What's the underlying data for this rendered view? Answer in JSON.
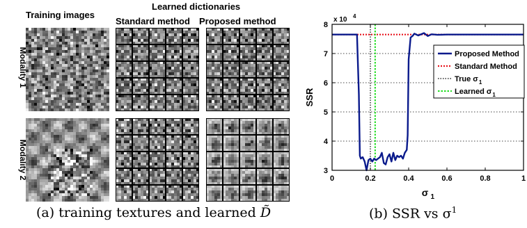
{
  "panel_a": {
    "header_training": "Training images",
    "header_dictionaries": "Learned dictionaries",
    "header_standard": "Standard method",
    "header_proposed": "Proposed method",
    "row_labels": [
      "Modality 1",
      "Modality 2"
    ],
    "caption_prefix": "(a) training textures and learned ",
    "caption_symbol": "D̃"
  },
  "panel_b": {
    "caption_prefix": "(b) SSR vs σ",
    "caption_sup": "1"
  },
  "chart_data": {
    "type": "line",
    "xlabel": "σ",
    "xlabel_sub": "1",
    "ylabel": "SSR",
    "y_multiplier": "x 10",
    "y_multiplier_exp": "4",
    "xlim": [
      0,
      1
    ],
    "ylim": [
      3,
      8
    ],
    "x_ticks": [
      0,
      0.2,
      0.4,
      0.6,
      0.8,
      1
    ],
    "x_tick_labels": [
      "0",
      "0.2",
      "0.4",
      "0.6",
      "0.8",
      "1"
    ],
    "y_ticks": [
      3,
      4,
      5,
      6,
      7,
      8
    ],
    "y_tick_labels": [
      "3",
      "4",
      "5",
      "6",
      "7",
      "8"
    ],
    "grid": "horizontal-dotted",
    "legend_position": "top-right",
    "series": [
      {
        "name": "Proposed Method",
        "color": "#0a1a8c",
        "style": "solid",
        "x": [
          0,
          0.05,
          0.1,
          0.13,
          0.14,
          0.145,
          0.15,
          0.16,
          0.17,
          0.18,
          0.19,
          0.2,
          0.21,
          0.22,
          0.23,
          0.24,
          0.25,
          0.26,
          0.27,
          0.28,
          0.29,
          0.3,
          0.31,
          0.32,
          0.33,
          0.34,
          0.35,
          0.36,
          0.37,
          0.38,
          0.39,
          0.395,
          0.4,
          0.41,
          0.42,
          0.43,
          0.45,
          0.48,
          0.5,
          0.52,
          0.55,
          0.6,
          0.7,
          0.8,
          0.9,
          1.0
        ],
        "y": [
          7.65,
          7.65,
          7.65,
          7.65,
          5.6,
          3.5,
          3.4,
          3.45,
          3.3,
          3.0,
          3.35,
          3.4,
          3.3,
          3.4,
          3.35,
          3.4,
          3.45,
          3.6,
          3.25,
          3.2,
          3.45,
          3.55,
          3.3,
          3.6,
          3.35,
          3.5,
          3.45,
          3.5,
          3.4,
          3.6,
          3.7,
          4.2,
          6.8,
          7.55,
          7.6,
          7.68,
          7.62,
          7.7,
          7.6,
          7.66,
          7.64,
          7.65,
          7.65,
          7.65,
          7.65,
          7.65
        ]
      },
      {
        "name": "Standard Method",
        "color": "#e8141e",
        "style": "dotted",
        "x": [
          0,
          1
        ],
        "y": [
          7.65,
          7.65
        ]
      },
      {
        "name": "True σ",
        "name_sub": "1",
        "color": "#000000",
        "style": "dotted-vertical",
        "x_value": 0.2
      },
      {
        "name": "Learned σ",
        "name_sub": "1",
        "color": "#22dd22",
        "style": "dotted-vertical",
        "x_value": 0.225
      }
    ]
  }
}
